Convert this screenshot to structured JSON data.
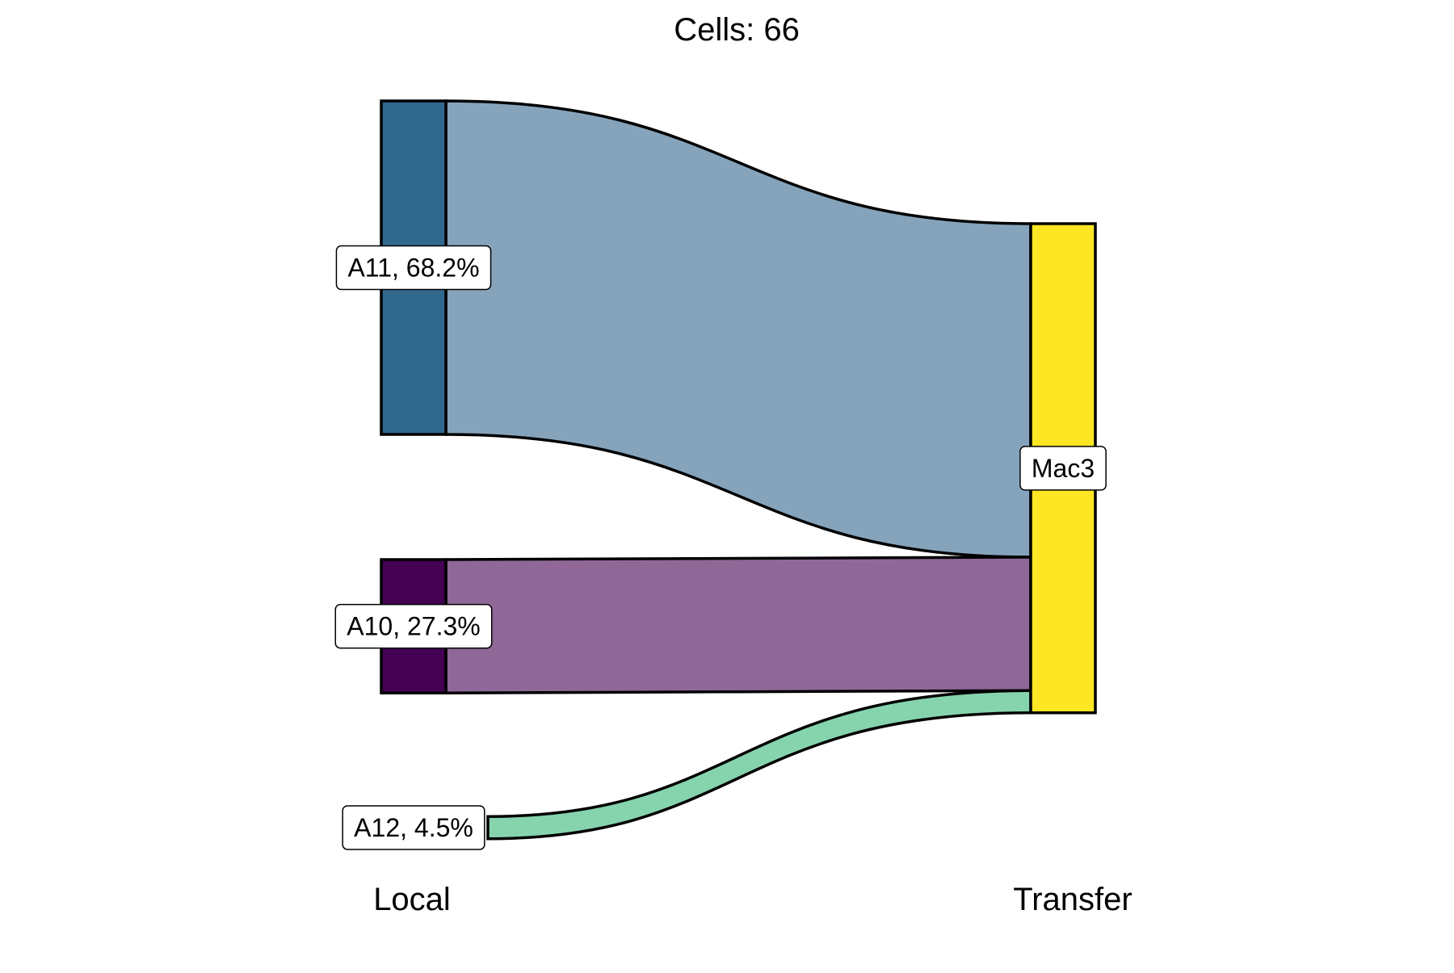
{
  "chart_data": {
    "type": "alluvial",
    "title": "Cells:  66",
    "axes": [
      "Local",
      "Transfer"
    ],
    "total": 66,
    "nodes": {
      "Local": [
        {
          "id": "A11",
          "label": "A11, 68.2%",
          "count": 45,
          "color": "#31688e",
          "flow_color": "#85a4bc"
        },
        {
          "id": "A10",
          "label": "A10, 27.3%",
          "count": 18,
          "color": "#440154",
          "flow_color": "#8f6898"
        },
        {
          "id": "A12",
          "label": "A12, 4.5%",
          "count": 3,
          "color": "#35b779",
          "flow_color": "#86d4ad"
        }
      ],
      "Transfer": [
        {
          "id": "Mac3",
          "label": "Mac3",
          "count": 66,
          "color": "#fde725"
        }
      ]
    },
    "flows": [
      {
        "from": "A11",
        "to": "Mac3",
        "count": 45
      },
      {
        "from": "A10",
        "to": "Mac3",
        "count": 18
      },
      {
        "from": "A12",
        "to": "Mac3",
        "count": 3
      }
    ]
  }
}
